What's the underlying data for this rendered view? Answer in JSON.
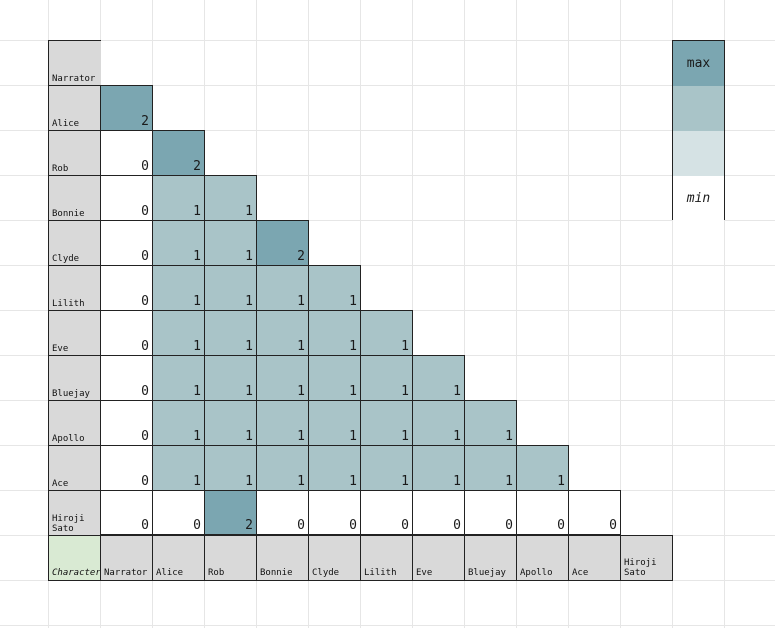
{
  "chart_data": {
    "type": "heatmap",
    "corner_label": "Character",
    "row_labels": [
      "Narrator",
      "Alice",
      "Rob",
      "Bonnie",
      "Clyde",
      "Lilith",
      "Eve",
      "Bluejay",
      "Apollo",
      "Ace",
      "Hiroji\nSato"
    ],
    "col_labels": [
      "Narrator",
      "Alice",
      "Rob",
      "Bonnie",
      "Clyde",
      "Lilith",
      "Eve",
      "Bluejay",
      "Apollo",
      "Ace",
      "Hiroji\nSato"
    ],
    "rows": [
      [],
      [
        2
      ],
      [
        0,
        2
      ],
      [
        0,
        1,
        1
      ],
      [
        0,
        1,
        1,
        2
      ],
      [
        0,
        1,
        1,
        1,
        1
      ],
      [
        0,
        1,
        1,
        1,
        1,
        1
      ],
      [
        0,
        1,
        1,
        1,
        1,
        1,
        1
      ],
      [
        0,
        1,
        1,
        1,
        1,
        1,
        1,
        1
      ],
      [
        0,
        1,
        1,
        1,
        1,
        1,
        1,
        1,
        1
      ],
      [
        0,
        0,
        2,
        0,
        0,
        0,
        0,
        0,
        0,
        0
      ]
    ],
    "legend": {
      "max_label": "max",
      "min_label": "min"
    },
    "colors": {
      "high": "#7ba6b1",
      "mid": "#a9c4c8",
      "low": "#d5e2e4",
      "zero": "#ffffff",
      "label_bg": "#d9d9d9",
      "corner_bg": "#d9ead3"
    }
  }
}
